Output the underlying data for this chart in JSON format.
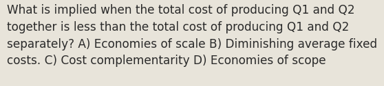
{
  "text": "What is implied when the total cost of producing Q1 and Q2\ntogether is less than the total cost of producing Q1 and Q2\nseparately? A) Economies of scale B) Diminishing average fixed\ncosts. C) Cost complementarity D) Economies of scope",
  "background_color": "#e8e4da",
  "text_color": "#2a2a2a",
  "font_size": 12.2,
  "fig_width": 5.58,
  "fig_height": 1.26,
  "dpi": 100
}
